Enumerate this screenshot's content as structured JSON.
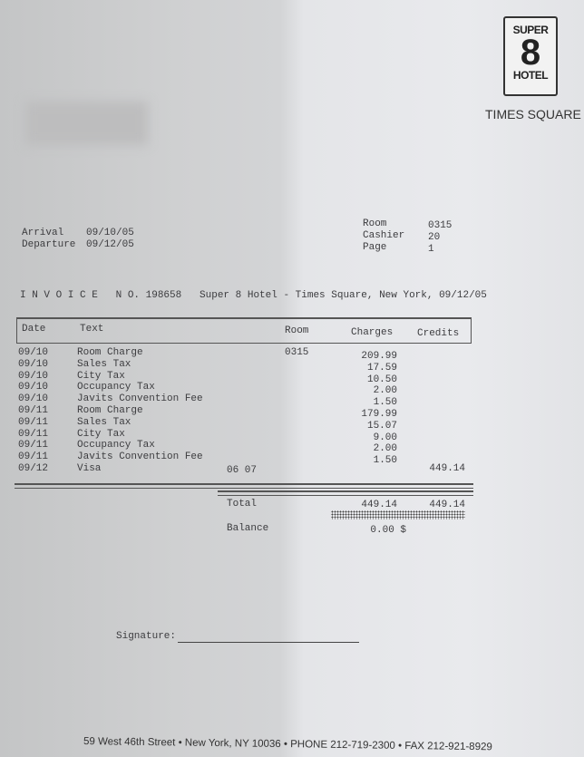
{
  "logo": {
    "line1": "SUPER",
    "line2": "8",
    "line3": "HOTEL",
    "location": "TIMES SQUARE"
  },
  "stay": {
    "arrival_label": "Arrival",
    "arrival": "09/10/05",
    "departure_label": "Departure",
    "departure": "09/12/05"
  },
  "info": {
    "room_label": "Room",
    "room": "0315",
    "cashier_label": "Cashier",
    "cashier": "20",
    "page_label": "Page",
    "page": "1"
  },
  "invoice_title": "I N V O I C E   N O. 198658   Super 8 Hotel - Times Square, New York, 09/12/05",
  "table": {
    "headers": {
      "date": "Date",
      "text": "Text",
      "room": "Room",
      "charges": "Charges",
      "credits": "Credits"
    },
    "rows": [
      {
        "date": "09/10",
        "text": "Room Charge",
        "room": "0315",
        "charges": "209.99",
        "credits": ""
      },
      {
        "date": "09/10",
        "text": "Sales Tax",
        "room": "",
        "charges": "17.59",
        "credits": ""
      },
      {
        "date": "09/10",
        "text": "City Tax",
        "room": "",
        "charges": "10.50",
        "credits": ""
      },
      {
        "date": "09/10",
        "text": "Occupancy Tax",
        "room": "",
        "charges": "2.00",
        "credits": ""
      },
      {
        "date": "09/10",
        "text": "Javits Convention Fee",
        "room": "",
        "charges": "1.50",
        "credits": ""
      },
      {
        "date": "09/11",
        "text": "Room Charge",
        "room": "",
        "charges": "179.99",
        "credits": ""
      },
      {
        "date": "09/11",
        "text": "Sales Tax",
        "room": "",
        "charges": "15.07",
        "credits": ""
      },
      {
        "date": "09/11",
        "text": "City Tax",
        "room": "",
        "charges": "9.00",
        "credits": ""
      },
      {
        "date": "09/11",
        "text": "Occupancy Tax",
        "room": "",
        "charges": "2.00",
        "credits": ""
      },
      {
        "date": "09/11",
        "text": "Javits Convention Fee",
        "room": "",
        "charges": "1.50",
        "credits": ""
      },
      {
        "date": "09/12",
        "text": "Visa",
        "room": "",
        "charges": "",
        "credits": "449.14",
        "extra": "06 07"
      }
    ],
    "total_label": "Total",
    "total_charges": "449.14",
    "total_credits": "449.14",
    "balance_label": "Balance",
    "balance": "0.00 $"
  },
  "signature_label": "Signature:",
  "footer": "59 West 46th Street • New York, NY 10036 • PHONE 212-719-2300 • FAX 212-921-8929"
}
